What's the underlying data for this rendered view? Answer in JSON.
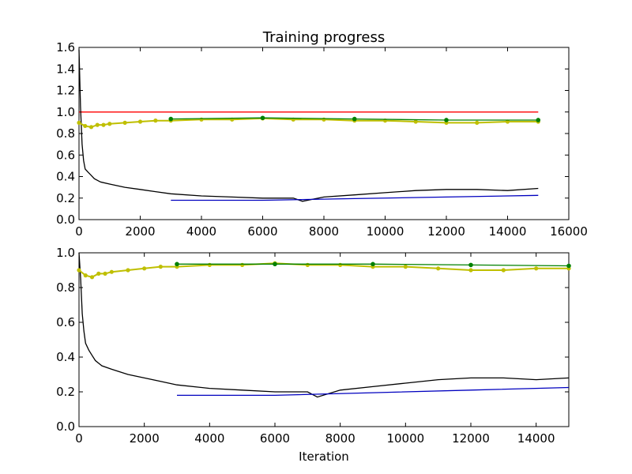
{
  "chart_data": [
    {
      "type": "line",
      "title": "Training progress",
      "xlabel": "",
      "ylabel": "",
      "xlim": [
        0,
        16000
      ],
      "ylim": [
        0.0,
        1.6
      ],
      "xticks": [
        "0",
        "2000",
        "4000",
        "6000",
        "8000",
        "10000",
        "12000",
        "14000",
        "16000"
      ],
      "yticks": [
        "0.0",
        "0.2",
        "0.4",
        "0.6",
        "0.8",
        "1.0",
        "1.2",
        "1.4",
        "1.6"
      ],
      "grid": false,
      "series": [
        {
          "color": "#ff0000",
          "style": "line",
          "x": [
            0,
            15000
          ],
          "y": [
            1.0,
            1.0
          ]
        },
        {
          "color": "#000000",
          "style": "line",
          "x": [
            0,
            50,
            100,
            150,
            200,
            300,
            400,
            500,
            700,
            1000,
            1500,
            2000,
            2500,
            3000,
            4000,
            5000,
            6000,
            7000,
            7300,
            8000,
            9000,
            10000,
            11000,
            12000,
            13000,
            14000,
            15000
          ],
          "y": [
            1.58,
            1.05,
            0.7,
            0.55,
            0.47,
            0.44,
            0.41,
            0.38,
            0.35,
            0.33,
            0.3,
            0.28,
            0.26,
            0.24,
            0.22,
            0.21,
            0.2,
            0.2,
            0.17,
            0.21,
            0.23,
            0.25,
            0.27,
            0.28,
            0.28,
            0.27,
            0.29
          ]
        },
        {
          "color": "#bfbf00",
          "style": "dots",
          "x": [
            0,
            200,
            400,
            600,
            800,
            1000,
            1500,
            2000,
            2500,
            3000,
            4000,
            5000,
            6000,
            7000,
            8000,
            9000,
            10000,
            11000,
            12000,
            13000,
            14000,
            15000
          ],
          "y": [
            0.9,
            0.87,
            0.86,
            0.88,
            0.88,
            0.89,
            0.9,
            0.91,
            0.92,
            0.92,
            0.93,
            0.93,
            0.94,
            0.93,
            0.93,
            0.92,
            0.92,
            0.91,
            0.9,
            0.9,
            0.91,
            0.91
          ]
        },
        {
          "color": "#008000",
          "style": "line-markers",
          "x": [
            3000,
            6000,
            9000,
            12000,
            15000
          ],
          "y": [
            0.935,
            0.945,
            0.935,
            0.925,
            0.925
          ]
        },
        {
          "color": "#0000bf",
          "style": "line",
          "x": [
            3000,
            6000,
            9000,
            12000,
            15000
          ],
          "y": [
            0.18,
            0.18,
            0.195,
            0.21,
            0.225
          ]
        }
      ]
    },
    {
      "type": "line",
      "title": "",
      "xlabel": "Iteration",
      "ylabel": "",
      "xlim": [
        0,
        15000
      ],
      "ylim": [
        0.0,
        1.0
      ],
      "xticks": [
        "0",
        "2000",
        "4000",
        "6000",
        "8000",
        "10000",
        "12000",
        "14000"
      ],
      "yticks": [
        "0.0",
        "0.2",
        "0.4",
        "0.6",
        "0.8",
        "1.0"
      ],
      "grid": false,
      "series": [
        {
          "color": "#000000",
          "style": "line",
          "x": [
            0,
            50,
            100,
            150,
            200,
            300,
            400,
            500,
            700,
            1000,
            1500,
            2000,
            2500,
            3000,
            4000,
            5000,
            6000,
            7000,
            7300,
            8000,
            9000,
            10000,
            11000,
            12000,
            13000,
            14000,
            15000
          ],
          "y": [
            1.0,
            0.85,
            0.65,
            0.55,
            0.48,
            0.44,
            0.41,
            0.38,
            0.35,
            0.33,
            0.3,
            0.28,
            0.26,
            0.24,
            0.22,
            0.21,
            0.2,
            0.2,
            0.17,
            0.21,
            0.23,
            0.25,
            0.27,
            0.28,
            0.28,
            0.27,
            0.28
          ]
        },
        {
          "color": "#bfbf00",
          "style": "dots",
          "x": [
            0,
            200,
            400,
            600,
            800,
            1000,
            1500,
            2000,
            2500,
            3000,
            4000,
            5000,
            6000,
            7000,
            8000,
            9000,
            10000,
            11000,
            12000,
            13000,
            14000,
            15000
          ],
          "y": [
            0.9,
            0.87,
            0.86,
            0.88,
            0.88,
            0.89,
            0.9,
            0.91,
            0.92,
            0.92,
            0.93,
            0.93,
            0.94,
            0.93,
            0.93,
            0.92,
            0.92,
            0.91,
            0.9,
            0.9,
            0.91,
            0.91
          ]
        },
        {
          "color": "#008000",
          "style": "line-markers",
          "x": [
            3000,
            6000,
            9000,
            12000,
            15000
          ],
          "y": [
            0.935,
            0.935,
            0.935,
            0.93,
            0.925
          ]
        },
        {
          "color": "#0000bf",
          "style": "line",
          "x": [
            3000,
            6000,
            9000,
            12000,
            15000
          ],
          "y": [
            0.18,
            0.18,
            0.195,
            0.21,
            0.225
          ]
        }
      ]
    }
  ]
}
